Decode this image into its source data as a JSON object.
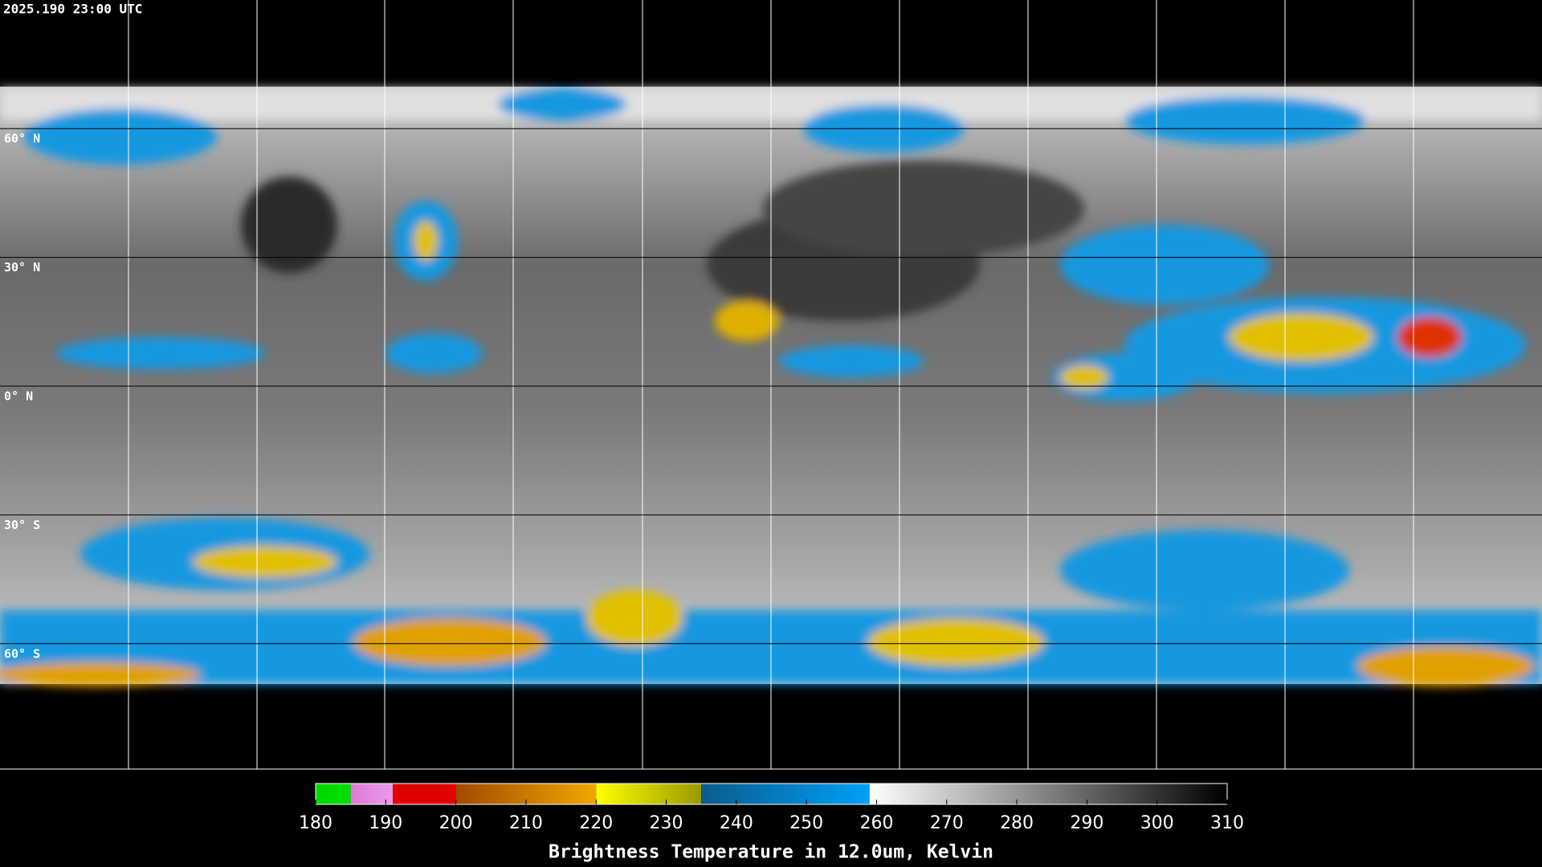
{
  "header": {
    "timestamp": "2025.190 23:00 UTC"
  },
  "latitudes": [
    {
      "value": 60,
      "label": "60° N"
    },
    {
      "value": 30,
      "label": "30° N"
    },
    {
      "value": 0,
      "label": "0° N"
    },
    {
      "value": -30,
      "label": "30° S"
    },
    {
      "value": -60,
      "label": "60° S"
    }
  ],
  "colorbar": {
    "title": "Brightness Temperature in 12.0um, Kelvin",
    "range": [
      180,
      310
    ],
    "ticks": [
      180,
      190,
      200,
      210,
      220,
      230,
      240,
      250,
      260,
      270,
      280,
      290,
      300,
      310
    ],
    "segments": [
      {
        "from": 180,
        "to": 185,
        "colors": [
          "#00d800",
          "#00e000"
        ]
      },
      {
        "from": 185,
        "to": 191,
        "colors": [
          "#e07ad8",
          "#e99be6"
        ]
      },
      {
        "from": 191,
        "to": 200,
        "colors": [
          "#e00000",
          "#e00000"
        ]
      },
      {
        "from": 200,
        "to": 220,
        "colors": [
          "#a04a00",
          "#f0a800"
        ]
      },
      {
        "from": 220,
        "to": 235,
        "colors": [
          "#ffff00",
          "#9a9a00"
        ]
      },
      {
        "from": 235,
        "to": 259,
        "colors": [
          "#0a5c8c",
          "#00a0f8"
        ]
      },
      {
        "from": 259,
        "to": 310,
        "colors": [
          "#ffffff",
          "#000000"
        ]
      }
    ]
  }
}
